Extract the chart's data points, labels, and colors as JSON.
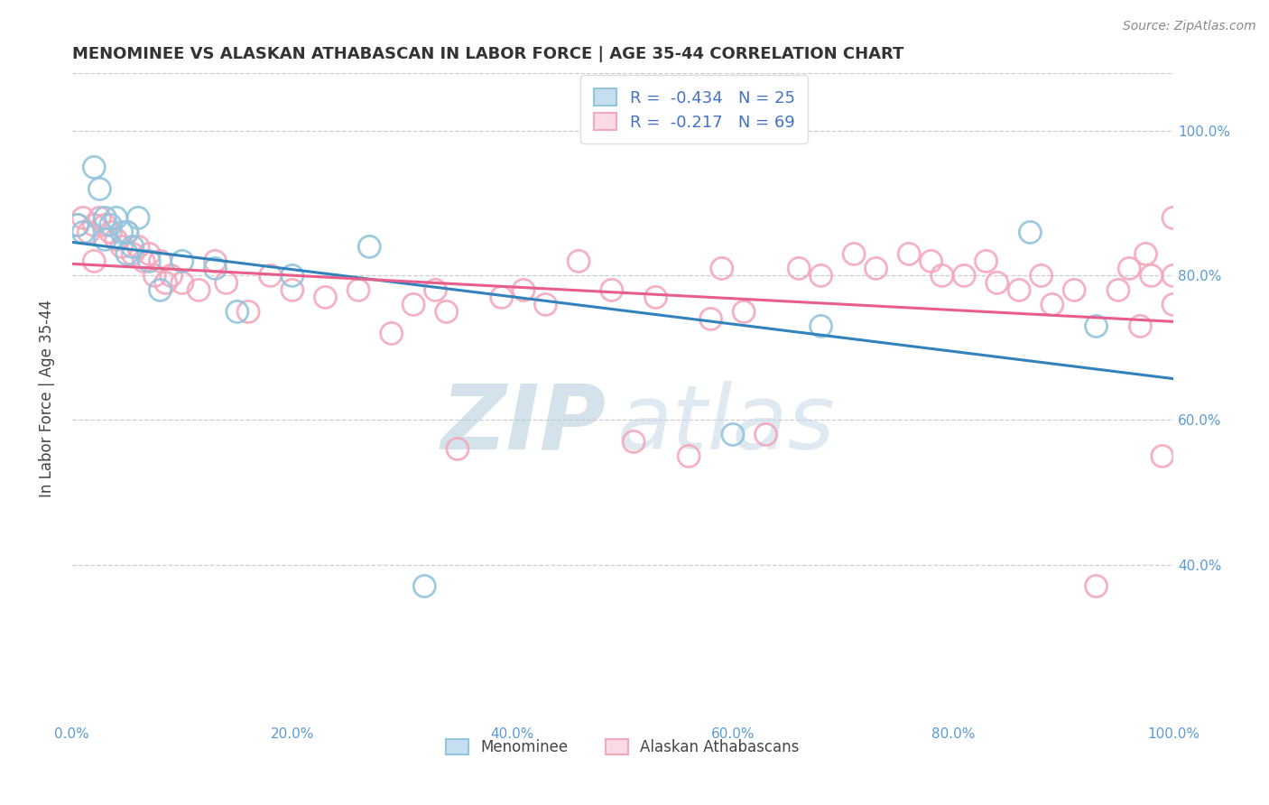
{
  "title": "MENOMINEE VS ALASKAN ATHABASCAN IN LABOR FORCE | AGE 35-44 CORRELATION CHART",
  "source": "Source: ZipAtlas.com",
  "ylabel": "In Labor Force | Age 35-44",
  "xlim": [
    0.0,
    1.0
  ],
  "ylim": [
    0.18,
    1.08
  ],
  "xtick_labels": [
    "0.0%",
    "20.0%",
    "40.0%",
    "60.0%",
    "80.0%",
    "100.0%"
  ],
  "xtick_vals": [
    0.0,
    0.2,
    0.4,
    0.6,
    0.8,
    1.0
  ],
  "ytick_labels": [
    "40.0%",
    "60.0%",
    "80.0%",
    "100.0%"
  ],
  "ytick_vals": [
    0.4,
    0.6,
    0.8,
    1.0
  ],
  "watermark_zip": "ZIP",
  "watermark_atlas": "atlas",
  "legend_labels": [
    "Menominee",
    "Alaskan Athabascans"
  ],
  "menominee_color": "#92c5de",
  "athabascan_color": "#f4a8bc",
  "menominee_line_color": "#3182bd",
  "athabascan_line_color": "#e85d8a",
  "tick_color": "#5b9bd5",
  "menominee_R": "-0.434",
  "menominee_N": "25",
  "athabascan_R": "-0.217",
  "athabascan_N": "69",
  "menominee_x": [
    0.005,
    0.01,
    0.02,
    0.025,
    0.03,
    0.03,
    0.035,
    0.04,
    0.045,
    0.05,
    0.05,
    0.055,
    0.06,
    0.07,
    0.08,
    0.1,
    0.13,
    0.15,
    0.2,
    0.27,
    0.32,
    0.6,
    0.68,
    0.87,
    0.93
  ],
  "menominee_y": [
    0.87,
    0.86,
    0.95,
    0.92,
    0.88,
    0.85,
    0.87,
    0.88,
    0.86,
    0.83,
    0.86,
    0.84,
    0.88,
    0.82,
    0.78,
    0.82,
    0.81,
    0.75,
    0.8,
    0.84,
    0.37,
    0.58,
    0.73,
    0.86,
    0.73
  ],
  "athabascan_x": [
    0.005,
    0.01,
    0.015,
    0.02,
    0.02,
    0.025,
    0.03,
    0.035,
    0.04,
    0.045,
    0.05,
    0.055,
    0.06,
    0.065,
    0.07,
    0.075,
    0.08,
    0.085,
    0.09,
    0.1,
    0.115,
    0.13,
    0.14,
    0.16,
    0.18,
    0.2,
    0.23,
    0.26,
    0.29,
    0.31,
    0.33,
    0.34,
    0.35,
    0.39,
    0.41,
    0.43,
    0.46,
    0.49,
    0.51,
    0.53,
    0.56,
    0.58,
    0.59,
    0.61,
    0.63,
    0.66,
    0.68,
    0.71,
    0.73,
    0.76,
    0.78,
    0.79,
    0.81,
    0.83,
    0.84,
    0.86,
    0.88,
    0.89,
    0.91,
    0.93,
    0.95,
    0.96,
    0.97,
    0.975,
    0.98,
    0.99,
    1.0,
    1.0,
    1.0
  ],
  "athabascan_y": [
    0.87,
    0.88,
    0.86,
    0.87,
    0.82,
    0.88,
    0.87,
    0.86,
    0.85,
    0.84,
    0.86,
    0.83,
    0.84,
    0.82,
    0.83,
    0.8,
    0.82,
    0.79,
    0.8,
    0.79,
    0.78,
    0.82,
    0.79,
    0.75,
    0.8,
    0.78,
    0.77,
    0.78,
    0.72,
    0.76,
    0.78,
    0.75,
    0.56,
    0.77,
    0.78,
    0.76,
    0.82,
    0.78,
    0.57,
    0.77,
    0.55,
    0.74,
    0.81,
    0.75,
    0.58,
    0.81,
    0.8,
    0.83,
    0.81,
    0.83,
    0.82,
    0.8,
    0.8,
    0.82,
    0.79,
    0.78,
    0.8,
    0.76,
    0.78,
    0.37,
    0.78,
    0.81,
    0.73,
    0.83,
    0.8,
    0.55,
    0.88,
    0.8,
    0.76
  ]
}
